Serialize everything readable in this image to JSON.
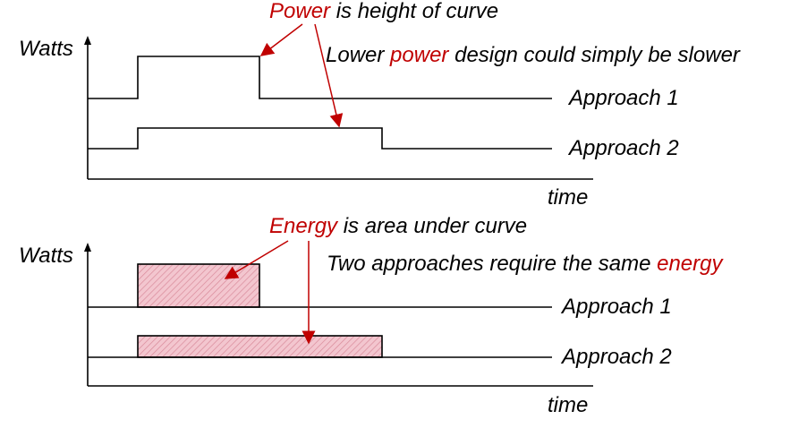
{
  "colors": {
    "accent_red": "#c00000",
    "line": "#000000",
    "area_fill": "#f3c6cf",
    "area_hatch": "#d98a9a"
  },
  "top_panel": {
    "y_label": "Watts",
    "x_label": "time",
    "title_emph": "Power",
    "title_rest": " is height of curve",
    "note_pre": "Lower ",
    "note_emph": "power",
    "note_post": " design could simply be slower",
    "series_1": "Approach 1",
    "series_2": "Approach 2"
  },
  "bottom_panel": {
    "y_label": "Watts",
    "x_label": "time",
    "title_emph": "Energy",
    "title_rest": " is area under curve",
    "note_pre": "Two approaches require the same ",
    "note_emph": "energy",
    "series_1": "Approach 1",
    "series_2": "Approach 2"
  }
}
